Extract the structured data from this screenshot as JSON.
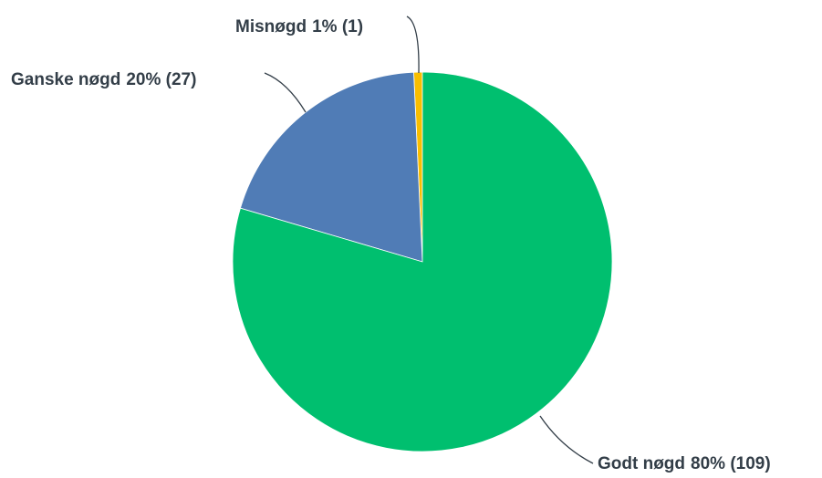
{
  "chart_data": {
    "type": "pie",
    "categories": [
      "Godt nøgd",
      "Ganske nøgd",
      "Misnøgd"
    ],
    "values": [
      109,
      27,
      1
    ],
    "value_labels": [
      "80% (109)",
      "20% (27)",
      "1% (1)"
    ],
    "colors": [
      "#00bf6f",
      "#507cb6",
      "#f9be00"
    ]
  }
}
